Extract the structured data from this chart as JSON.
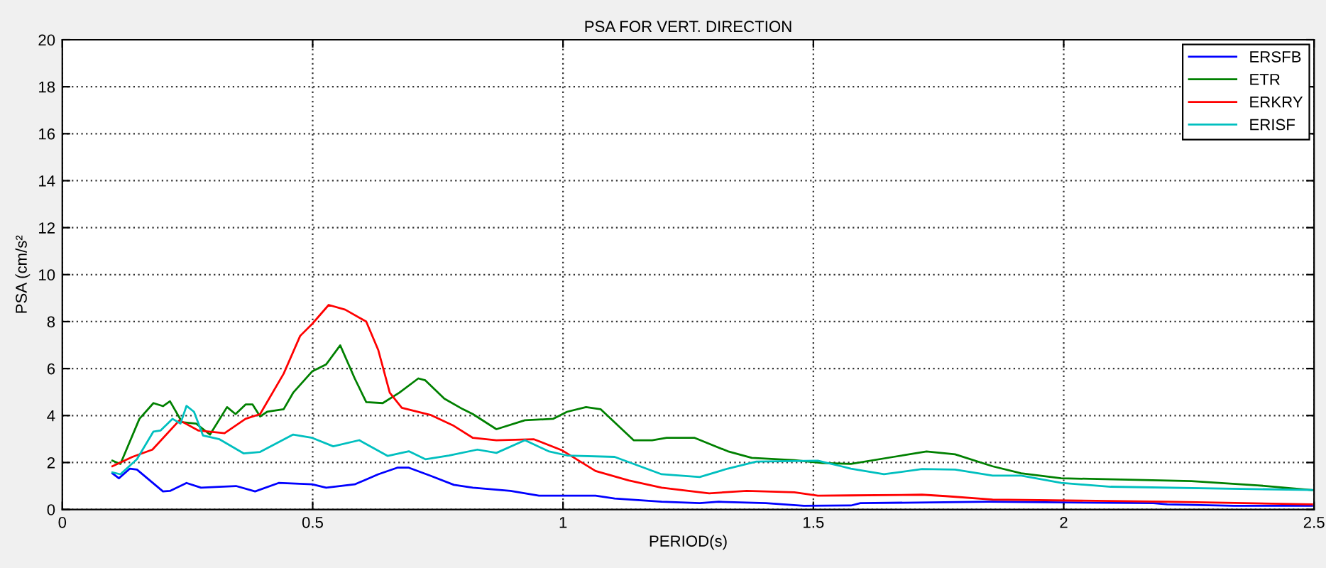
{
  "chart_data": {
    "type": "line",
    "title": "PSA FOR VERT. DIRECTION",
    "xlabel": "PERIOD(s)",
    "ylabel": "PSA (cm/s²",
    "xlim": [
      0,
      2.5
    ],
    "xticks": [
      0,
      0.5,
      1,
      1.5,
      2,
      2.5
    ],
    "ylim": [
      0,
      20
    ],
    "yticks": [
      0,
      2,
      4,
      6,
      8,
      10,
      12,
      14,
      16,
      18,
      20
    ],
    "grid": true,
    "legend": "top right",
    "line_style": "solid",
    "series": [
      {
        "name": "ERSFB",
        "color": "#0000ff",
        "x": [
          0.1,
          0.113,
          0.135,
          0.149,
          0.201,
          0.215,
          0.248,
          0.277,
          0.314,
          0.347,
          0.385,
          0.432,
          0.499,
          0.527,
          0.584,
          0.631,
          0.669,
          0.692,
          0.735,
          0.782,
          0.82,
          0.895,
          0.952,
          1.065,
          1.103,
          1.197,
          1.273,
          1.311,
          1.405,
          1.481,
          1.575,
          1.594,
          1.849,
          2.179,
          2.207,
          2.34,
          2.496
        ],
        "values": [
          1.54,
          1.33,
          1.74,
          1.7,
          0.77,
          0.79,
          1.13,
          0.93,
          0.97,
          1.0,
          0.77,
          1.13,
          1.07,
          0.93,
          1.07,
          1.5,
          1.78,
          1.78,
          1.44,
          1.05,
          0.93,
          0.79,
          0.59,
          0.59,
          0.47,
          0.33,
          0.27,
          0.33,
          0.27,
          0.16,
          0.17,
          0.27,
          0.33,
          0.27,
          0.22,
          0.16,
          0.16
        ]
      },
      {
        "name": "ETR",
        "color": "#008000",
        "x": [
          0.1,
          0.116,
          0.154,
          0.182,
          0.201,
          0.215,
          0.239,
          0.267,
          0.295,
          0.329,
          0.346,
          0.366,
          0.38,
          0.395,
          0.409,
          0.442,
          0.461,
          0.499,
          0.527,
          0.555,
          0.584,
          0.607,
          0.64,
          0.673,
          0.711,
          0.725,
          0.763,
          0.8,
          0.82,
          0.867,
          0.924,
          0.98,
          1.008,
          1.046,
          1.075,
          1.141,
          1.178,
          1.207,
          1.263,
          1.329,
          1.377,
          1.462,
          1.518,
          1.575,
          1.66,
          1.726,
          1.783,
          1.858,
          1.915,
          1.995,
          2.255,
          2.387,
          2.496
        ],
        "values": [
          2.08,
          1.94,
          3.86,
          4.53,
          4.4,
          4.61,
          3.72,
          3.66,
          3.19,
          4.36,
          4.06,
          4.47,
          4.47,
          3.96,
          4.16,
          4.27,
          4.97,
          5.88,
          6.18,
          6.99,
          5.58,
          4.57,
          4.53,
          4.97,
          5.58,
          5.5,
          4.72,
          4.27,
          4.06,
          3.42,
          3.8,
          3.86,
          4.16,
          4.36,
          4.27,
          2.95,
          2.95,
          3.05,
          3.05,
          2.48,
          2.2,
          2.1,
          1.98,
          1.94,
          2.24,
          2.47,
          2.35,
          1.84,
          1.54,
          1.33,
          1.21,
          1.03,
          0.83
        ]
      },
      {
        "name": "ERKRY",
        "color": "#ff0000",
        "x": [
          0.1,
          0.14,
          0.18,
          0.234,
          0.272,
          0.324,
          0.366,
          0.395,
          0.442,
          0.475,
          0.499,
          0.532,
          0.565,
          0.607,
          0.631,
          0.654,
          0.678,
          0.735,
          0.782,
          0.82,
          0.867,
          0.942,
          0.999,
          1.065,
          1.131,
          1.197,
          1.292,
          1.367,
          1.462,
          1.509,
          1.575,
          1.717,
          1.764,
          1.858,
          2.207,
          2.496
        ],
        "values": [
          1.84,
          2.24,
          2.55,
          3.8,
          3.36,
          3.25,
          3.86,
          4.06,
          5.78,
          7.39,
          7.9,
          8.71,
          8.51,
          8.0,
          6.79,
          4.97,
          4.33,
          4.03,
          3.56,
          3.05,
          2.95,
          2.99,
          2.51,
          1.64,
          1.24,
          0.93,
          0.69,
          0.79,
          0.73,
          0.59,
          0.6,
          0.63,
          0.57,
          0.42,
          0.33,
          0.22
        ]
      },
      {
        "name": "ERISF",
        "color": "#00bfbf",
        "x": [
          0.1,
          0.116,
          0.149,
          0.182,
          0.196,
          0.22,
          0.236,
          0.248,
          0.263,
          0.281,
          0.314,
          0.362,
          0.395,
          0.461,
          0.499,
          0.541,
          0.593,
          0.65,
          0.692,
          0.725,
          0.772,
          0.829,
          0.867,
          0.924,
          0.971,
          1.008,
          1.103,
          1.197,
          1.273,
          1.329,
          1.386,
          1.509,
          1.556,
          1.575,
          1.641,
          1.717,
          1.783,
          1.858,
          1.915,
          1.995,
          2.094,
          2.496
        ],
        "values": [
          1.58,
          1.5,
          2.14,
          3.32,
          3.36,
          3.86,
          3.66,
          4.41,
          4.16,
          3.15,
          2.99,
          2.39,
          2.45,
          3.19,
          3.05,
          2.69,
          2.95,
          2.28,
          2.48,
          2.14,
          2.3,
          2.55,
          2.41,
          2.95,
          2.48,
          2.3,
          2.24,
          1.5,
          1.38,
          1.74,
          2.04,
          2.08,
          1.84,
          1.74,
          1.5,
          1.72,
          1.7,
          1.44,
          1.44,
          1.13,
          0.97,
          0.83
        ]
      }
    ]
  }
}
